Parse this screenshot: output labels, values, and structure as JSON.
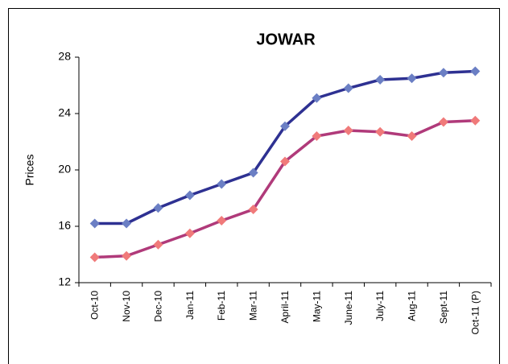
{
  "chart_data": {
    "type": "line",
    "title": "JOWAR",
    "y_label": "Prices",
    "categories": [
      "Oct-10",
      "Nov-10",
      "Dec-10",
      "Jan-11",
      "Feb-11",
      "Mar-11",
      "April-11",
      "May-11",
      "June-11",
      "July-11",
      "Aug-11",
      "Sept-11",
      "Oct-11 (P)"
    ],
    "series": [
      {
        "color": "#2e3192",
        "marker_color": "#6b7fc4",
        "values": [
          16.2,
          16.2,
          17.3,
          18.2,
          19.0,
          19.8,
          23.1,
          25.1,
          25.8,
          26.4,
          26.5,
          26.9,
          27.0
        ]
      },
      {
        "color": "#b03a7a",
        "marker_color": "#f07a7a",
        "values": [
          13.8,
          13.9,
          14.7,
          15.5,
          16.4,
          17.2,
          20.6,
          22.4,
          22.8,
          22.7,
          22.4,
          23.4,
          23.5
        ]
      }
    ],
    "ylim": [
      12,
      28
    ],
    "yticks": [
      12,
      16,
      20,
      24,
      28
    ]
  }
}
